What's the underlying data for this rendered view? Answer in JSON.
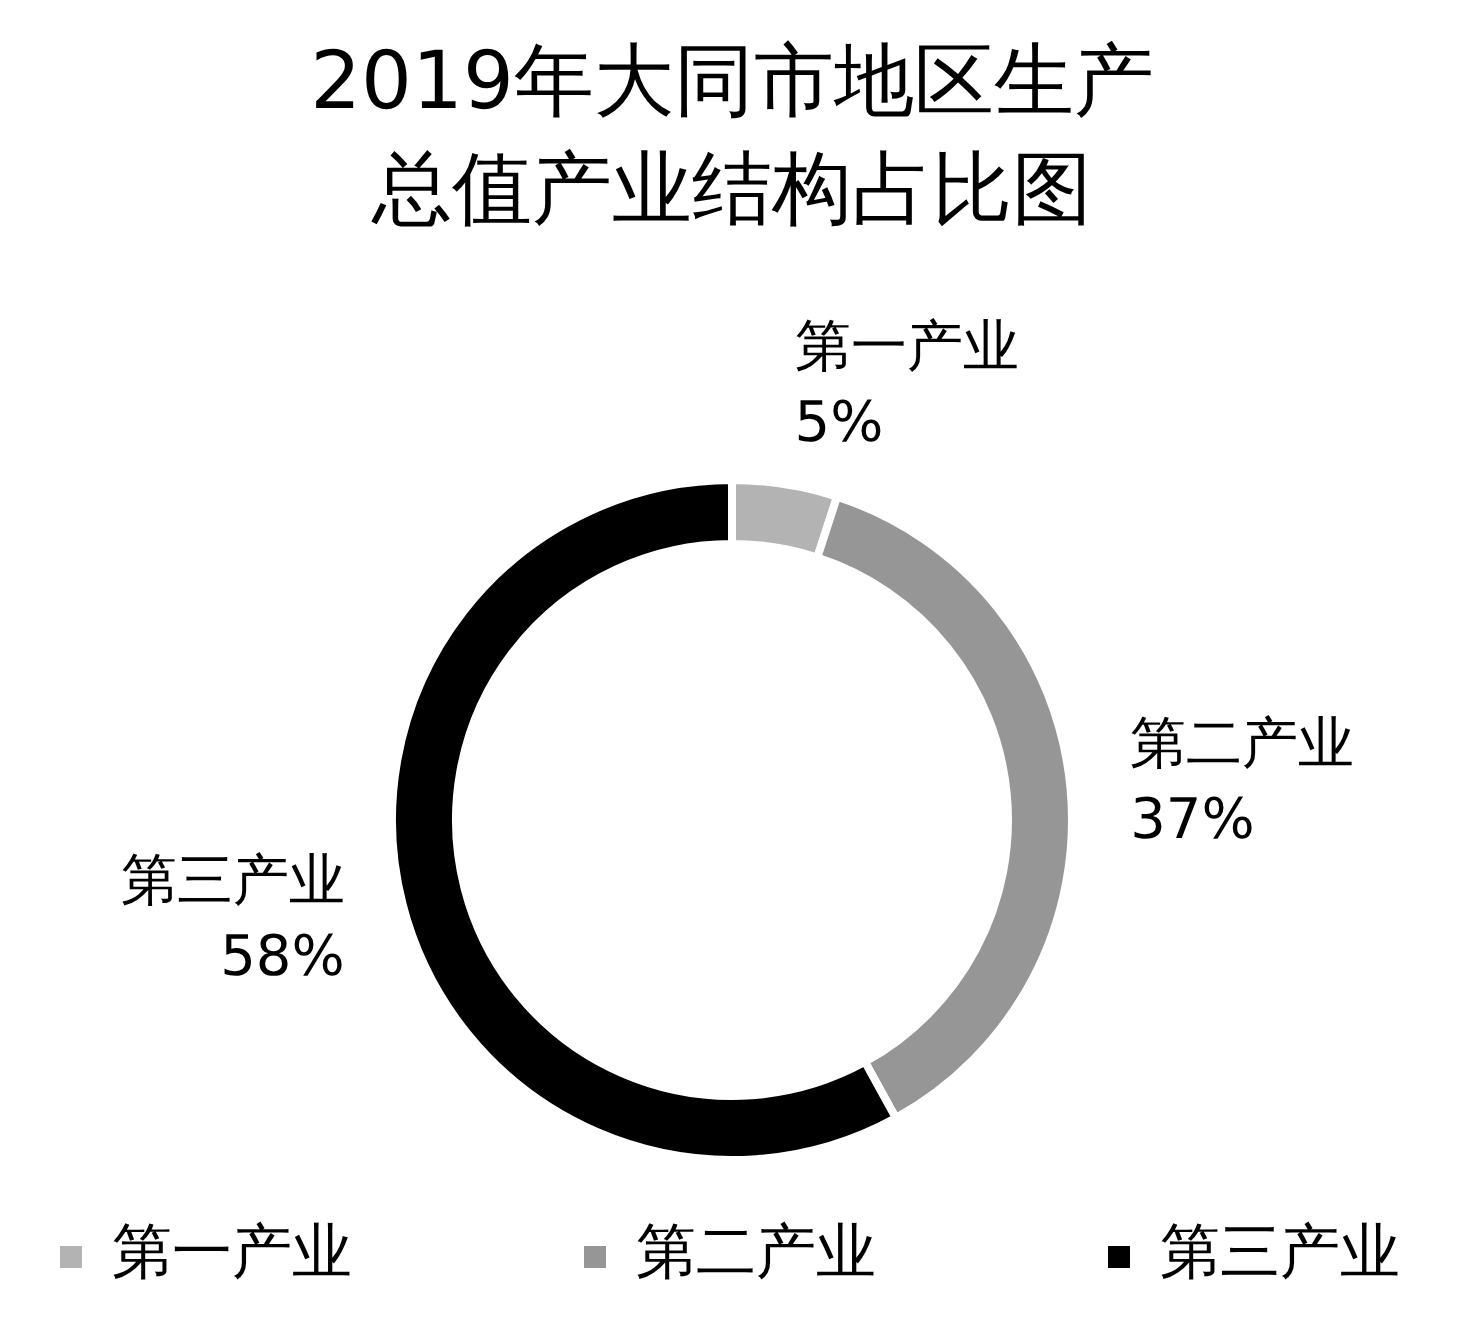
{
  "chart_data": {
    "type": "donut",
    "title": "2019年大同市地区生产总值产业结构占比图",
    "categories": [
      "第一产业",
      "第二产业",
      "第三产业"
    ],
    "values": [
      5,
      37,
      58
    ],
    "value_labels": [
      "5%",
      "37%",
      "58%"
    ],
    "colors": [
      "#b3b3b3",
      "#969696",
      "#000000"
    ],
    "legend": "bottom"
  }
}
